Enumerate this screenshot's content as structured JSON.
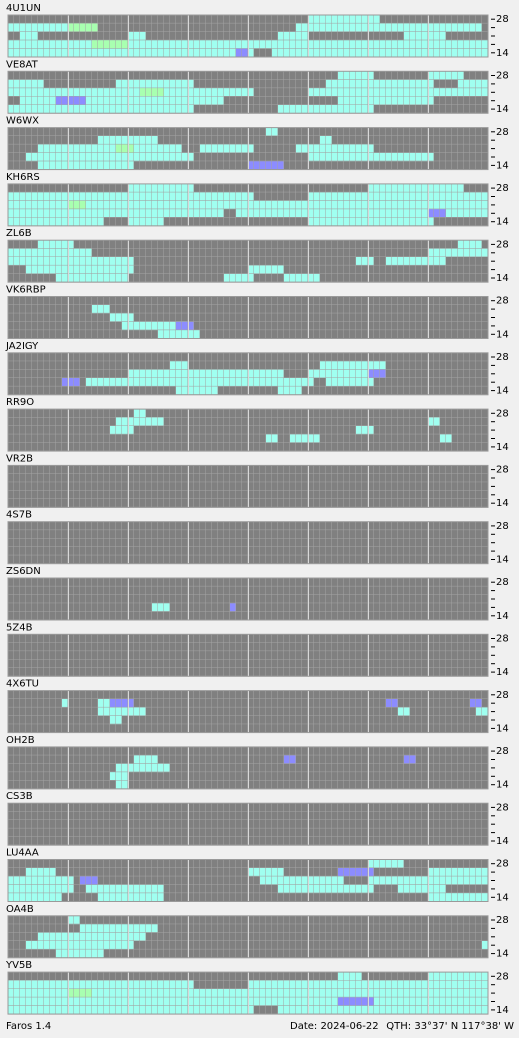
{
  "band_top": "28",
  "band_bottom": "14",
  "level_colors": [
    "#a0fff0",
    "#a8ffb0",
    "#8c8cff"
  ],
  "footer": {
    "app": "Faros 1.4",
    "date": "Date: 2024-06-22",
    "qth": "QTH: 33°37' N  117°38' W"
  },
  "stations": [
    {
      "name": "4U1UN",
      "cells": [
        [
          0,
          50,
          61,
          0
        ],
        [
          1,
          0,
          9,
          0
        ],
        [
          1,
          10,
          14,
          1
        ],
        [
          1,
          48,
          78,
          0
        ],
        [
          2,
          2,
          4,
          0
        ],
        [
          2,
          20,
          22,
          0
        ],
        [
          2,
          45,
          49,
          0
        ],
        [
          2,
          66,
          72,
          0
        ],
        [
          3,
          0,
          79,
          0
        ],
        [
          4,
          0,
          40,
          0
        ],
        [
          4,
          44,
          79,
          0
        ],
        [
          3,
          14,
          19,
          1
        ],
        [
          4,
          38,
          39,
          2
        ]
      ]
    },
    {
      "name": "VE8AT",
      "cells": [
        [
          0,
          55,
          60,
          0
        ],
        [
          0,
          70,
          75,
          0
        ],
        [
          1,
          0,
          5,
          0
        ],
        [
          1,
          18,
          30,
          0
        ],
        [
          1,
          53,
          70,
          0
        ],
        [
          1,
          75,
          79,
          0
        ],
        [
          2,
          0,
          40,
          0
        ],
        [
          2,
          50,
          79,
          0
        ],
        [
          3,
          2,
          35,
          0
        ],
        [
          3,
          55,
          70,
          0
        ],
        [
          4,
          0,
          30,
          0
        ],
        [
          4,
          45,
          60,
          0
        ],
        [
          2,
          22,
          25,
          1
        ],
        [
          3,
          8,
          12,
          2
        ]
      ]
    },
    {
      "name": "W6WX",
      "cells": [
        [
          0,
          43,
          44,
          0
        ],
        [
          1,
          15,
          24,
          0
        ],
        [
          1,
          52,
          53,
          0
        ],
        [
          2,
          5,
          28,
          0
        ],
        [
          2,
          32,
          40,
          0
        ],
        [
          2,
          48,
          60,
          0
        ],
        [
          3,
          3,
          30,
          0
        ],
        [
          3,
          50,
          70,
          0
        ],
        [
          4,
          5,
          20,
          0
        ],
        [
          4,
          40,
          45,
          2
        ],
        [
          2,
          18,
          20,
          1
        ]
      ]
    },
    {
      "name": "KH6RS",
      "cells": [
        [
          0,
          20,
          30,
          0
        ],
        [
          0,
          60,
          75,
          0
        ],
        [
          1,
          0,
          40,
          0
        ],
        [
          1,
          50,
          79,
          0
        ],
        [
          2,
          0,
          79,
          0
        ],
        [
          3,
          0,
          35,
          0
        ],
        [
          3,
          38,
          79,
          0
        ],
        [
          4,
          0,
          15,
          0
        ],
        [
          4,
          20,
          25,
          0
        ],
        [
          4,
          50,
          70,
          0
        ],
        [
          3,
          70,
          72,
          2
        ],
        [
          2,
          10,
          12,
          1
        ]
      ]
    },
    {
      "name": "ZL6B",
      "cells": [
        [
          0,
          5,
          10,
          0
        ],
        [
          0,
          75,
          78,
          0
        ],
        [
          1,
          0,
          13,
          0
        ],
        [
          1,
          70,
          79,
          0
        ],
        [
          2,
          0,
          20,
          0
        ],
        [
          2,
          63,
          72,
          0
        ],
        [
          3,
          3,
          20,
          0
        ],
        [
          3,
          40,
          45,
          0
        ],
        [
          4,
          8,
          19,
          0
        ],
        [
          4,
          36,
          40,
          0
        ],
        [
          4,
          46,
          51,
          0
        ],
        [
          2,
          58,
          60,
          0
        ]
      ]
    },
    {
      "name": "VK6RBP",
      "cells": [
        [
          1,
          14,
          16,
          0
        ],
        [
          2,
          17,
          20,
          0
        ],
        [
          3,
          19,
          29,
          0
        ],
        [
          3,
          28,
          30,
          2
        ],
        [
          4,
          25,
          31,
          0
        ]
      ]
    },
    {
      "name": "JA2IGY",
      "cells": [
        [
          1,
          27,
          29,
          0
        ],
        [
          1,
          52,
          62,
          0
        ],
        [
          2,
          20,
          45,
          0
        ],
        [
          2,
          50,
          60,
          0
        ],
        [
          3,
          9,
          11,
          2
        ],
        [
          3,
          13,
          50,
          0
        ],
        [
          3,
          53,
          60,
          0
        ],
        [
          4,
          28,
          34,
          0
        ],
        [
          4,
          45,
          48,
          0
        ],
        [
          2,
          60,
          62,
          2
        ]
      ]
    },
    {
      "name": "RR9O",
      "cells": [
        [
          0,
          21,
          22,
          0
        ],
        [
          1,
          18,
          25,
          0
        ],
        [
          2,
          17,
          20,
          0
        ],
        [
          3,
          43,
          44,
          0
        ],
        [
          3,
          47,
          51,
          0
        ],
        [
          2,
          58,
          60,
          0
        ],
        [
          1,
          70,
          71,
          0
        ],
        [
          3,
          72,
          73,
          0
        ]
      ]
    },
    {
      "name": "VR2B",
      "cells": []
    },
    {
      "name": "4S7B",
      "cells": []
    },
    {
      "name": "ZS6DN",
      "cells": [
        [
          3,
          24,
          26,
          0
        ],
        [
          3,
          37,
          37,
          2
        ]
      ]
    },
    {
      "name": "5Z4B",
      "cells": []
    },
    {
      "name": "4X6TU",
      "cells": [
        [
          1,
          15,
          16,
          0
        ],
        [
          1,
          17,
          20,
          2
        ],
        [
          2,
          15,
          22,
          0
        ],
        [
          3,
          17,
          18,
          0
        ],
        [
          1,
          63,
          64,
          2
        ],
        [
          2,
          65,
          66,
          0
        ],
        [
          1,
          77,
          78,
          2
        ],
        [
          2,
          78,
          79,
          0
        ],
        [
          1,
          9,
          9,
          0
        ]
      ]
    },
    {
      "name": "OH2B",
      "cells": [
        [
          1,
          21,
          24,
          0
        ],
        [
          2,
          18,
          25,
          0
        ],
        [
          3,
          17,
          19,
          0
        ],
        [
          4,
          18,
          19,
          0
        ],
        [
          1,
          46,
          47,
          2
        ],
        [
          1,
          66,
          67,
          2
        ],
        [
          2,
          25,
          26,
          0
        ]
      ]
    },
    {
      "name": "CS3B",
      "cells": []
    },
    {
      "name": "LU4AA",
      "cells": [
        [
          0,
          60,
          65,
          0
        ],
        [
          1,
          3,
          7,
          0
        ],
        [
          1,
          40,
          45,
          0
        ],
        [
          1,
          55,
          60,
          2
        ],
        [
          1,
          70,
          79,
          0
        ],
        [
          2,
          0,
          10,
          0
        ],
        [
          2,
          42,
          55,
          0
        ],
        [
          2,
          60,
          79,
          0
        ],
        [
          3,
          0,
          10,
          0
        ],
        [
          3,
          13,
          25,
          0
        ],
        [
          3,
          45,
          60,
          0
        ],
        [
          3,
          65,
          72,
          0
        ],
        [
          4,
          0,
          8,
          0
        ],
        [
          4,
          15,
          25,
          0
        ],
        [
          4,
          70,
          79,
          0
        ],
        [
          2,
          12,
          14,
          2
        ]
      ]
    },
    {
      "name": "OA4B",
      "cells": [
        [
          0,
          10,
          11,
          0
        ],
        [
          1,
          12,
          24,
          0
        ],
        [
          2,
          5,
          22,
          0
        ],
        [
          3,
          3,
          20,
          0
        ],
        [
          4,
          8,
          15,
          0
        ],
        [
          3,
          79,
          79,
          0
        ]
      ]
    },
    {
      "name": "YV5B",
      "cells": [
        [
          0,
          70,
          79,
          0
        ],
        [
          0,
          55,
          58,
          0
        ],
        [
          1,
          0,
          30,
          0
        ],
        [
          1,
          40,
          79,
          0
        ],
        [
          2,
          0,
          79,
          0
        ],
        [
          3,
          0,
          79,
          0
        ],
        [
          4,
          0,
          40,
          0
        ],
        [
          4,
          45,
          79,
          0
        ],
        [
          2,
          10,
          13,
          1
        ],
        [
          3,
          55,
          60,
          2
        ]
      ]
    }
  ]
}
